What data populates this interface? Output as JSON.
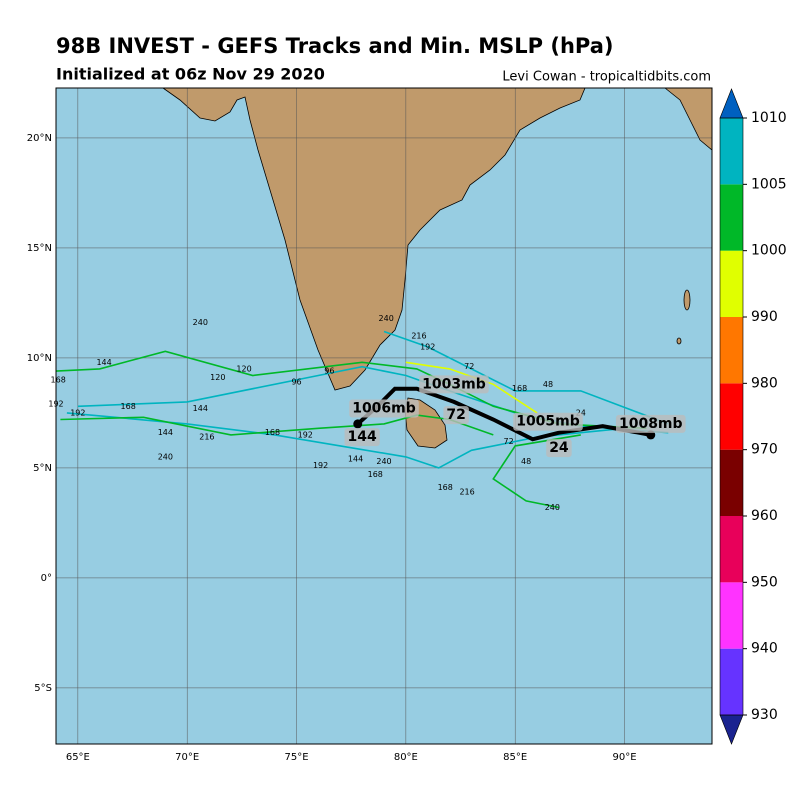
{
  "header": {
    "title": "98B INVEST - GEFS Tracks and Min. MSLP (hPa)",
    "subtitle": "Initialized at 06z Nov 29 2020",
    "credit": "Levi Cowan - tropicaltidbits.com"
  },
  "map": {
    "lonlim": [
      64,
      94
    ],
    "latlim": [
      -7.55,
      22.27
    ],
    "lonticks": [
      {
        "value": 65,
        "label": "65°E"
      },
      {
        "value": 70,
        "label": "70°E"
      },
      {
        "value": 75,
        "label": "75°E"
      },
      {
        "value": 80,
        "label": "80°E"
      },
      {
        "value": 85,
        "label": "85°E"
      },
      {
        "value": 90,
        "label": "90°E"
      }
    ],
    "latticks": [
      {
        "value": -5,
        "label": "5°S"
      },
      {
        "value": 0,
        "label": "0°"
      },
      {
        "value": 5,
        "label": "5°N"
      },
      {
        "value": 10,
        "label": "10°N"
      },
      {
        "value": 15,
        "label": "15°N"
      },
      {
        "value": 20,
        "label": "20°N"
      }
    ],
    "members": [
      {
        "color": "#00b4c0",
        "lon": [
          92,
          88,
          85,
          82,
          80,
          78,
          75,
          70,
          65
        ],
        "lat": [
          6.6,
          6.9,
          7.5,
          8.5,
          9.2,
          9.6,
          9.0,
          8.0,
          7.8
        ]
      },
      {
        "color": "#00b828",
        "lon": [
          91,
          87,
          84,
          82,
          80.5,
          78,
          73,
          69,
          66,
          64
        ],
        "lat": [
          6.8,
          7.0,
          7.8,
          8.8,
          9.5,
          9.8,
          9.2,
          10.3,
          9.5,
          9.4
        ]
      },
      {
        "color": "#00b4c0",
        "lon": [
          90,
          86,
          83,
          81.5,
          80,
          77,
          74,
          70,
          64.5
        ],
        "lat": [
          6.8,
          6.4,
          5.8,
          5.0,
          5.5,
          6.0,
          6.5,
          7.0,
          7.5
        ]
      },
      {
        "color": "#e0ff00",
        "lon": [
          86,
          84,
          82,
          80
        ],
        "lat": [
          7.5,
          8.8,
          9.5,
          9.8
        ]
      },
      {
        "color": "#00b828",
        "lon": [
          88,
          85,
          84,
          85.5,
          87
        ],
        "lat": [
          6.5,
          6.0,
          4.5,
          3.5,
          3.2
        ]
      },
      {
        "color": "#00b4c0",
        "lon": [
          92,
          88,
          85,
          81,
          79
        ],
        "lat": [
          7.0,
          8.5,
          8.5,
          10.5,
          11.2
        ]
      },
      {
        "color": "#00b828",
        "lon": [
          84,
          82,
          80.5,
          79,
          76,
          72,
          68,
          64.2
        ],
        "lat": [
          6.5,
          7.2,
          7.4,
          7.0,
          6.8,
          6.5,
          7.3,
          7.2
        ]
      }
    ],
    "mean_track": {
      "lon": [
        91.2,
        89,
        87,
        85.8,
        84,
        82.2,
        80.5,
        79.5,
        78.7,
        77.8
      ],
      "lat": [
        6.5,
        6.9,
        6.6,
        6.3,
        7.2,
        8.0,
        8.6,
        8.6,
        7.8,
        7.0
      ]
    },
    "track_labels": [
      {
        "text": "1008mb",
        "lon": 91.2,
        "lat": 7.0
      },
      {
        "text": "1005mb",
        "lon": 86.5,
        "lat": 7.1
      },
      {
        "text": "1003mb",
        "lon": 82.2,
        "lat": 8.8
      },
      {
        "text": "1006mb",
        "lon": 79.0,
        "lat": 7.7
      },
      {
        "text": "24",
        "lon": 87.0,
        "lat": 5.9
      },
      {
        "text": "72",
        "lon": 82.3,
        "lat": 7.4
      },
      {
        "text": "144",
        "lon": 78.0,
        "lat": 6.4
      }
    ],
    "hour_labels": [
      {
        "text": "240",
        "lon": 70.6,
        "lat": 11.6
      },
      {
        "text": "144",
        "lon": 66.2,
        "lat": 9.8
      },
      {
        "text": "168",
        "lon": 64.1,
        "lat": 9.0
      },
      {
        "text": "192",
        "lon": 64.0,
        "lat": 7.9
      },
      {
        "text": "192",
        "lon": 65.0,
        "lat": 7.5
      },
      {
        "text": "168",
        "lon": 67.3,
        "lat": 7.8
      },
      {
        "text": "144",
        "lon": 70.6,
        "lat": 7.7
      },
      {
        "text": "144",
        "lon": 69.0,
        "lat": 6.6
      },
      {
        "text": "216",
        "lon": 70.9,
        "lat": 6.4
      },
      {
        "text": "240",
        "lon": 69.0,
        "lat": 5.5
      },
      {
        "text": "168",
        "lon": 73.9,
        "lat": 6.6
      },
      {
        "text": "192",
        "lon": 75.4,
        "lat": 6.5
      },
      {
        "text": "192",
        "lon": 76.1,
        "lat": 5.1
      },
      {
        "text": "144",
        "lon": 77.7,
        "lat": 5.4
      },
      {
        "text": "240",
        "lon": 79.0,
        "lat": 5.3
      },
      {
        "text": "168",
        "lon": 78.6,
        "lat": 4.7
      },
      {
        "text": "96",
        "lon": 76.5,
        "lat": 9.4
      },
      {
        "text": "96",
        "lon": 75.0,
        "lat": 8.9
      },
      {
        "text": "216",
        "lon": 82.8,
        "lat": 3.9
      },
      {
        "text": "240",
        "lon": 86.7,
        "lat": 3.2
      },
      {
        "text": "48",
        "lon": 85.5,
        "lat": 5.3
      },
      {
        "text": "168",
        "lon": 81.8,
        "lat": 4.1
      },
      {
        "text": "72",
        "lon": 84.7,
        "lat": 6.2
      },
      {
        "text": "48",
        "lon": 86.5,
        "lat": 8.8
      },
      {
        "text": "240",
        "lon": 79.1,
        "lat": 11.8
      },
      {
        "text": "216",
        "lon": 80.6,
        "lat": 11.0
      },
      {
        "text": "192",
        "lon": 81.0,
        "lat": 10.5
      },
      {
        "text": "120",
        "lon": 71.4,
        "lat": 9.1
      },
      {
        "text": "120",
        "lon": 72.6,
        "lat": 9.5
      },
      {
        "text": "72",
        "lon": 82.9,
        "lat": 9.6
      },
      {
        "text": "168",
        "lon": 85.2,
        "lat": 8.6
      },
      {
        "text": "24",
        "lon": 88.0,
        "lat": 7.5
      }
    ]
  },
  "colorbar": {
    "ticks": [
      930,
      940,
      950,
      960,
      970,
      980,
      990,
      1000,
      1005,
      1010
    ],
    "bin_colors": [
      "#6633ff",
      "#ff33ff",
      "#e8005a",
      "#7a0000",
      "#ff0000",
      "#ff7700",
      "#e0ff00",
      "#00b828",
      "#00b4c0"
    ],
    "under_color": "#1a2390",
    "over_color": "#0060c0"
  }
}
